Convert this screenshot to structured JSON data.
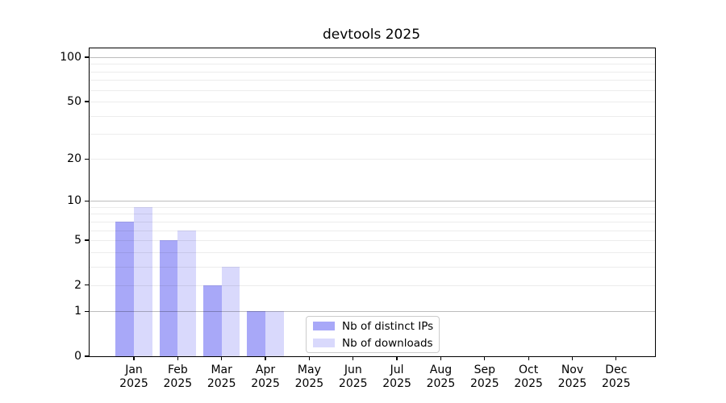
{
  "title": "devtools 2025",
  "colors": {
    "series_distinct_ips": "#a8a8f8",
    "series_downloads": "#d9d9fc",
    "major_grid": "#bdbdbd",
    "minor_grid": "#ebebeb",
    "spine": "#000000",
    "legend_border": "#cccccc",
    "background": "#ffffff"
  },
  "legend": {
    "items": [
      {
        "label": "Nb of distinct IPs",
        "swatch": "#a8a8f8"
      },
      {
        "label": "Nb of downloads",
        "swatch": "#d9d9fc"
      }
    ]
  },
  "axes": {
    "y_tick_labels": [
      "0",
      "1",
      "2",
      "5",
      "10",
      "20",
      "50",
      "100"
    ],
    "x_year": "2025"
  },
  "chart_data": {
    "type": "bar",
    "title": "devtools 2025",
    "categories": [
      "Jan 2025",
      "Feb 2025",
      "Mar 2025",
      "Apr 2025",
      "May 2025",
      "Jun 2025",
      "Jul 2025",
      "Aug 2025",
      "Sep 2025",
      "Oct 2025",
      "Nov 2025",
      "Dec 2025"
    ],
    "series": [
      {
        "name": "Nb of distinct IPs",
        "color": "#a8a8f8",
        "values": [
          7,
          5,
          2,
          1,
          0,
          0,
          0,
          0,
          0,
          0,
          0,
          0
        ]
      },
      {
        "name": "Nb of downloads",
        "color": "#d9d9fc",
        "values": [
          9,
          6,
          3,
          1,
          0,
          0,
          0,
          0,
          0,
          0,
          0,
          0
        ]
      }
    ],
    "xlabel": "",
    "ylabel": "",
    "yscale": "log1p",
    "y_ticks": [
      0,
      1,
      2,
      5,
      10,
      20,
      50,
      100
    ],
    "y_major_gridlines": [
      1,
      10,
      100
    ],
    "y_minor_gridlines": [
      2,
      3,
      4,
      5,
      6,
      7,
      8,
      9,
      20,
      30,
      40,
      50,
      60,
      70,
      80,
      90
    ],
    "ylim": [
      0,
      115
    ],
    "grid": true,
    "legend_position": "lower center"
  }
}
